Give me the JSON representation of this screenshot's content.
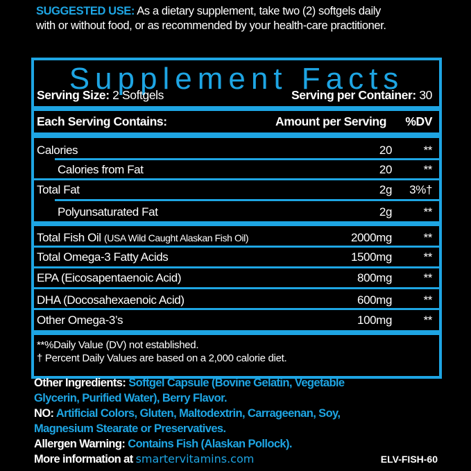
{
  "suggested_use": {
    "label": "SUGGESTED USE:",
    "line1": "As a dietary supplement, take two (2) softgels daily",
    "line2": "with or without food, or as recommended by your health-care practitioner."
  },
  "facts": {
    "title": "Supplement Facts",
    "serving_size_label": "Serving Size:",
    "serving_size_value": "2 Softgels",
    "servings_per_container_label": "Serving per Container:",
    "servings_per_container_value": "30",
    "header": {
      "each": "Each Serving Contains:",
      "amount": "Amount per Serving",
      "dv": "%DV"
    },
    "rows": [
      {
        "name": "Calories",
        "amount": "20",
        "dv": "**"
      },
      {
        "name": "Calories from Fat",
        "amount": "20",
        "dv": "**"
      },
      {
        "name": "Total Fat",
        "amount": "2g",
        "dv": "3%†"
      },
      {
        "name": "Polyunsaturated Fat",
        "amount": "2g",
        "dv": "**"
      },
      {
        "name": "Total Fish Oil",
        "note": "(USA Wild Caught Alaskan Fish Oil)",
        "amount": "2000mg",
        "dv": "**"
      },
      {
        "name": "Total Omega-3 Fatty Acids",
        "amount": "1500mg",
        "dv": "**"
      },
      {
        "name": "EPA (Eicosapentaenoic Acid)",
        "amount": "800mg",
        "dv": "**"
      },
      {
        "name": "DHA (Docosahexaenoic Acid)",
        "amount": "600mg",
        "dv": "**"
      },
      {
        "name": "Other Omega-3’s",
        "amount": "100mg",
        "dv": "**"
      }
    ],
    "footnote1": "**%Daily Value (DV) not established.",
    "footnote2": "† Percent Daily Values are based on a 2,000 calorie diet."
  },
  "other": {
    "ingredients_label": "Other Ingredients:",
    "ingredients_line1": "Softgel Capsule (Bovine Gelatin, Vegetable",
    "ingredients_line2": "Glycerin, Purified Water), Berry Flavor.",
    "no_label": "NO:",
    "no_line1": "Artificial Colors, Gluten, Maltodextrin, Carrageenan, Soy,",
    "no_line2": "Magnesium Stearate or Preservatives.",
    "allergen_label": "Allergen Warning:",
    "allergen_value": "Contains Fish (Alaskan Pollock).",
    "more_info_label": "More information at",
    "website": "smartervitamins.com",
    "product_code": "ELV-FISH-60"
  },
  "colors": {
    "accent": "#1ea5e3",
    "background": "#000000",
    "text": "#ffffff"
  }
}
